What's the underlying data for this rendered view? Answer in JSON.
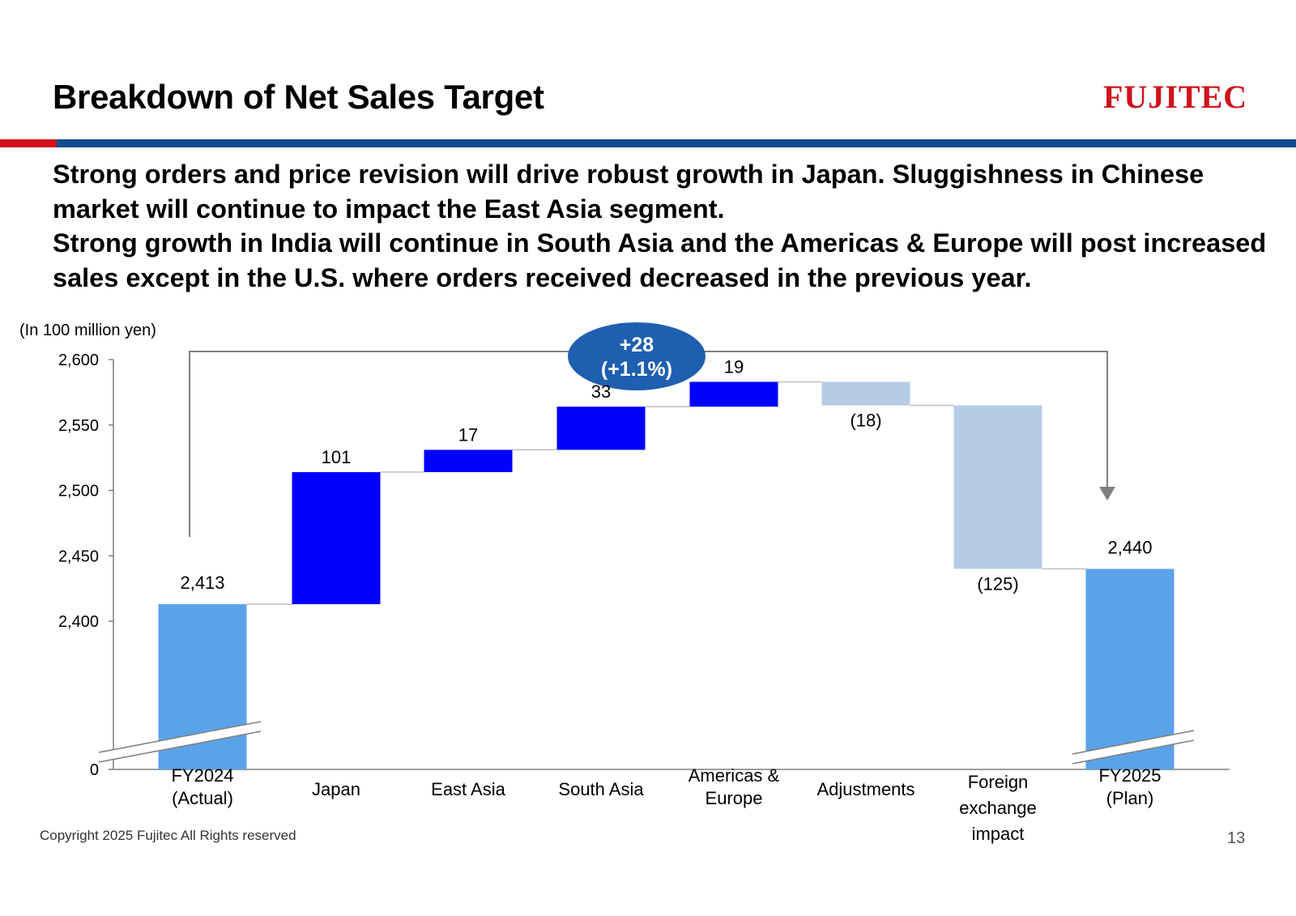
{
  "title": "Breakdown of Net Sales Target",
  "logo": "FUJITEC",
  "headline": [
    "Strong orders and price revision will drive robust growth in Japan. Sluggishness in Chinese market will continue to impact the East Asia segment.",
    "Strong growth in India will continue in South Asia and the Americas & Europe will post increased sales except in the U.S. where orders received decreased in the previous year."
  ],
  "unit_label": "(In 100 million yen)",
  "footer": "Copyright 2025 Fujitec All Rights reserved",
  "page_number": "13",
  "callout": {
    "line1": "+28",
    "line2": "(+1.1%)"
  },
  "colors": {
    "total": "#5aa3e8",
    "increase": "#0000ff",
    "decrease": "#b7cce4",
    "callout": "#1f5fb0",
    "brand_red": "#d0121b",
    "brand_blue": "#0d4a8f"
  },
  "chart_data": {
    "type": "waterfall",
    "ylim": [
      2400,
      2600
    ],
    "y_ticks": [
      {
        "value": 0,
        "label": "0"
      },
      {
        "value": 2400,
        "label": "2,400"
      },
      {
        "value": 2450,
        "label": "2,450"
      },
      {
        "value": 2500,
        "label": "2,500"
      },
      {
        "value": 2550,
        "label": "2,550"
      },
      {
        "value": 2600,
        "label": "2,600"
      }
    ],
    "axis_break": true,
    "bars": [
      {
        "category": [
          "FY2024",
          "(Actual)"
        ],
        "kind": "total",
        "value": 2413,
        "label": "2,413"
      },
      {
        "category": [
          "Japan"
        ],
        "kind": "increase",
        "value": 101,
        "label": "101"
      },
      {
        "category": [
          "East Asia"
        ],
        "kind": "increase",
        "value": 17,
        "label": "17"
      },
      {
        "category": [
          "South Asia"
        ],
        "kind": "increase",
        "value": 33,
        "label": "33"
      },
      {
        "category": [
          "Americas &",
          "Europe"
        ],
        "kind": "increase",
        "value": 19,
        "label": "19"
      },
      {
        "category": [
          "Adjustments"
        ],
        "kind": "decrease",
        "value": -18,
        "label": "(18)"
      },
      {
        "category": [
          "Foreign",
          "exchange",
          "impact"
        ],
        "kind": "decrease",
        "value": -125,
        "label": "(125)"
      },
      {
        "category": [
          "FY2025",
          "(Plan)"
        ],
        "kind": "total",
        "value": 2440,
        "label": "2,440"
      }
    ]
  }
}
